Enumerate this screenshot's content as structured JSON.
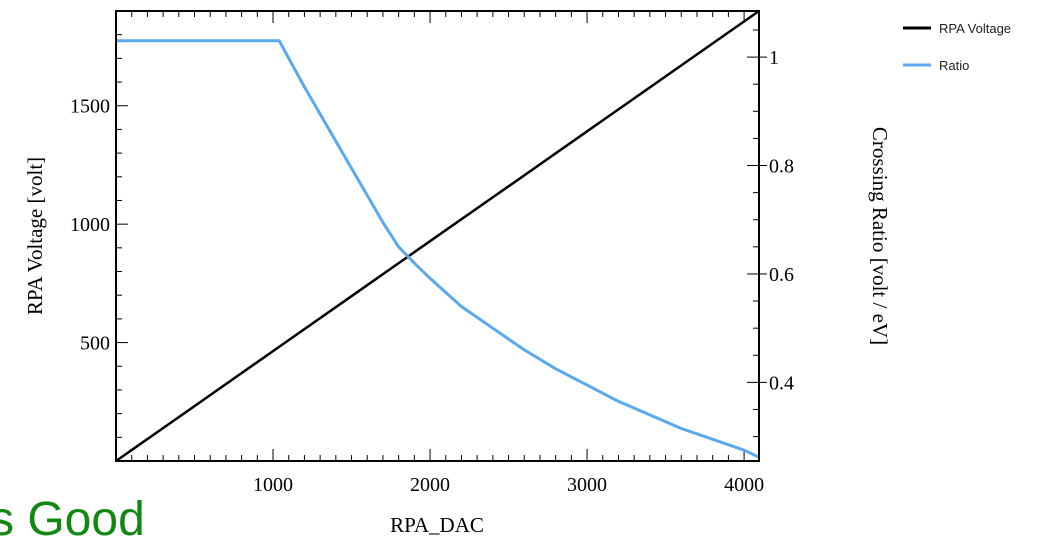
{
  "chart_data": {
    "type": "line",
    "xlabel": "RPA_DAC",
    "ylabel": "RPA Voltage [volt]",
    "y2label": "Crossing Ratio [volt / eV]",
    "xlim": [
      0,
      4095
    ],
    "ylim": [
      0,
      1900
    ],
    "y2lim": [
      0.255,
      1.085
    ],
    "xticks": [
      1000,
      2000,
      3000,
      4000
    ],
    "yticks": [
      500,
      1000,
      1500
    ],
    "y2ticks": [
      0.4,
      0.6,
      0.8,
      1
    ],
    "y2tick_labels": [
      "0.4",
      "0.6",
      "0.8",
      "1"
    ],
    "grid": false,
    "legend_position": "top-right",
    "series": [
      {
        "name": "RPA Voltage",
        "axis": "left",
        "color": "#000000",
        "x": [
          0,
          500,
          1000,
          1500,
          2000,
          2500,
          3000,
          3500,
          4095
        ],
        "y": [
          0,
          232,
          464,
          696,
          928,
          1160,
          1392,
          1624,
          1900
        ]
      },
      {
        "name": "Ratio",
        "axis": "right",
        "color": "#5aa9ee",
        "x": [
          0,
          200,
          500,
          800,
          1040,
          1100,
          1200,
          1300,
          1400,
          1500,
          1600,
          1700,
          1800,
          1900,
          2000,
          2200,
          2400,
          2600,
          2800,
          3000,
          3200,
          3400,
          3600,
          3800,
          4000,
          4095
        ],
        "y": [
          1.03,
          1.03,
          1.03,
          1.03,
          1.03,
          0.998,
          0.945,
          0.895,
          0.845,
          0.795,
          0.745,
          0.695,
          0.65,
          0.62,
          0.592,
          0.54,
          0.5,
          0.46,
          0.425,
          0.395,
          0.365,
          0.34,
          0.315,
          0.295,
          0.275,
          0.262
        ]
      }
    ]
  },
  "overlay": {
    "text": "ks Good"
  },
  "colors": {
    "ratio_line": "#5aa9ee",
    "voltage_line": "#000000",
    "overlay_text": "#118811"
  }
}
